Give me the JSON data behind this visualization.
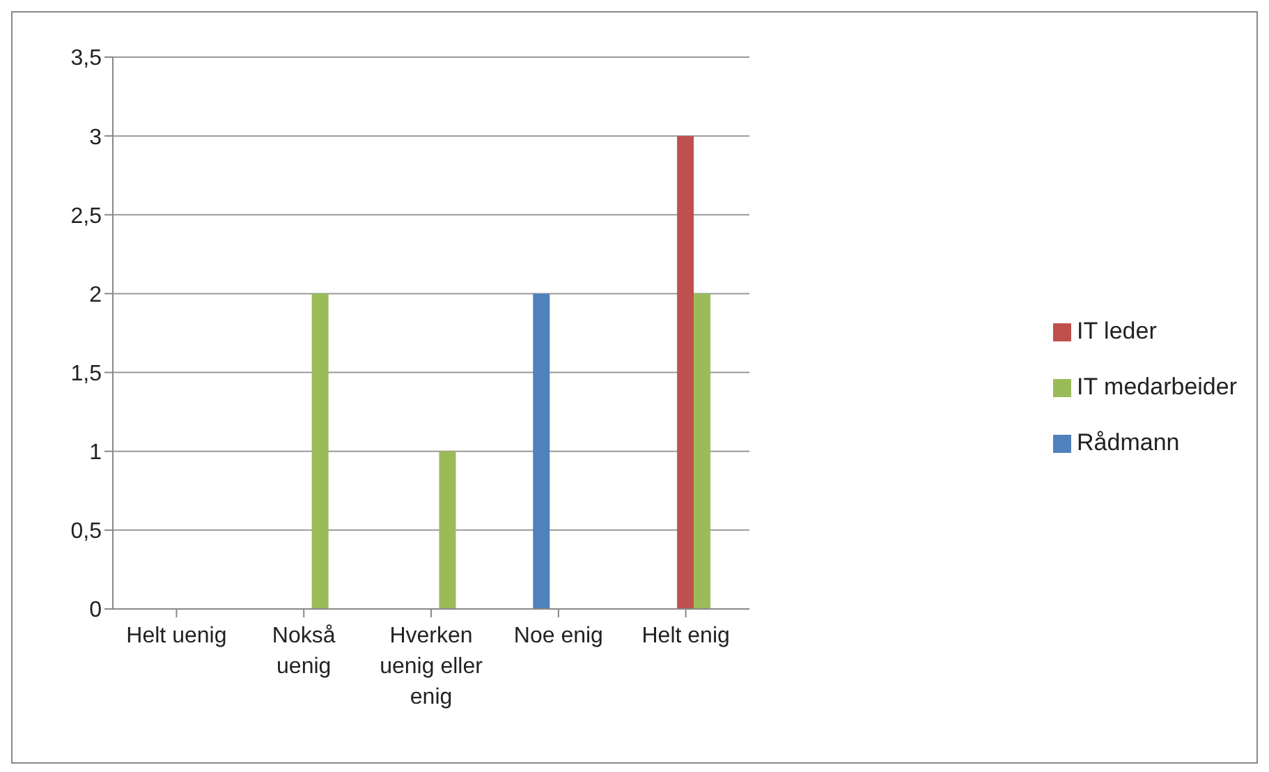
{
  "chart_data": {
    "type": "bar",
    "categories": [
      "Helt uenig",
      "Nokså uenig",
      "Hverken uenig eller enig",
      "Noe enig",
      "Helt enig"
    ],
    "series": [
      {
        "name": "Rådmann",
        "color": "#4f81bd",
        "values": [
          0,
          0,
          0,
          2,
          0
        ]
      },
      {
        "name": "IT leder",
        "color": "#c0504d",
        "values": [
          0,
          0,
          0,
          0,
          3
        ]
      },
      {
        "name": "IT medarbeider",
        "color": "#9bbb59",
        "values": [
          0,
          2,
          1,
          0,
          2
        ]
      }
    ],
    "ylim": [
      0,
      3.5
    ],
    "yticks": [
      0,
      {
        "value": 0.5,
        "label": "0,5"
      },
      1,
      {
        "value": 1.5,
        "label": "1,5"
      },
      2,
      {
        "value": 2.5,
        "label": "2,5"
      },
      3,
      {
        "value": 3.5,
        "label": "3,5"
      }
    ],
    "grid": "y",
    "legend": "right"
  }
}
